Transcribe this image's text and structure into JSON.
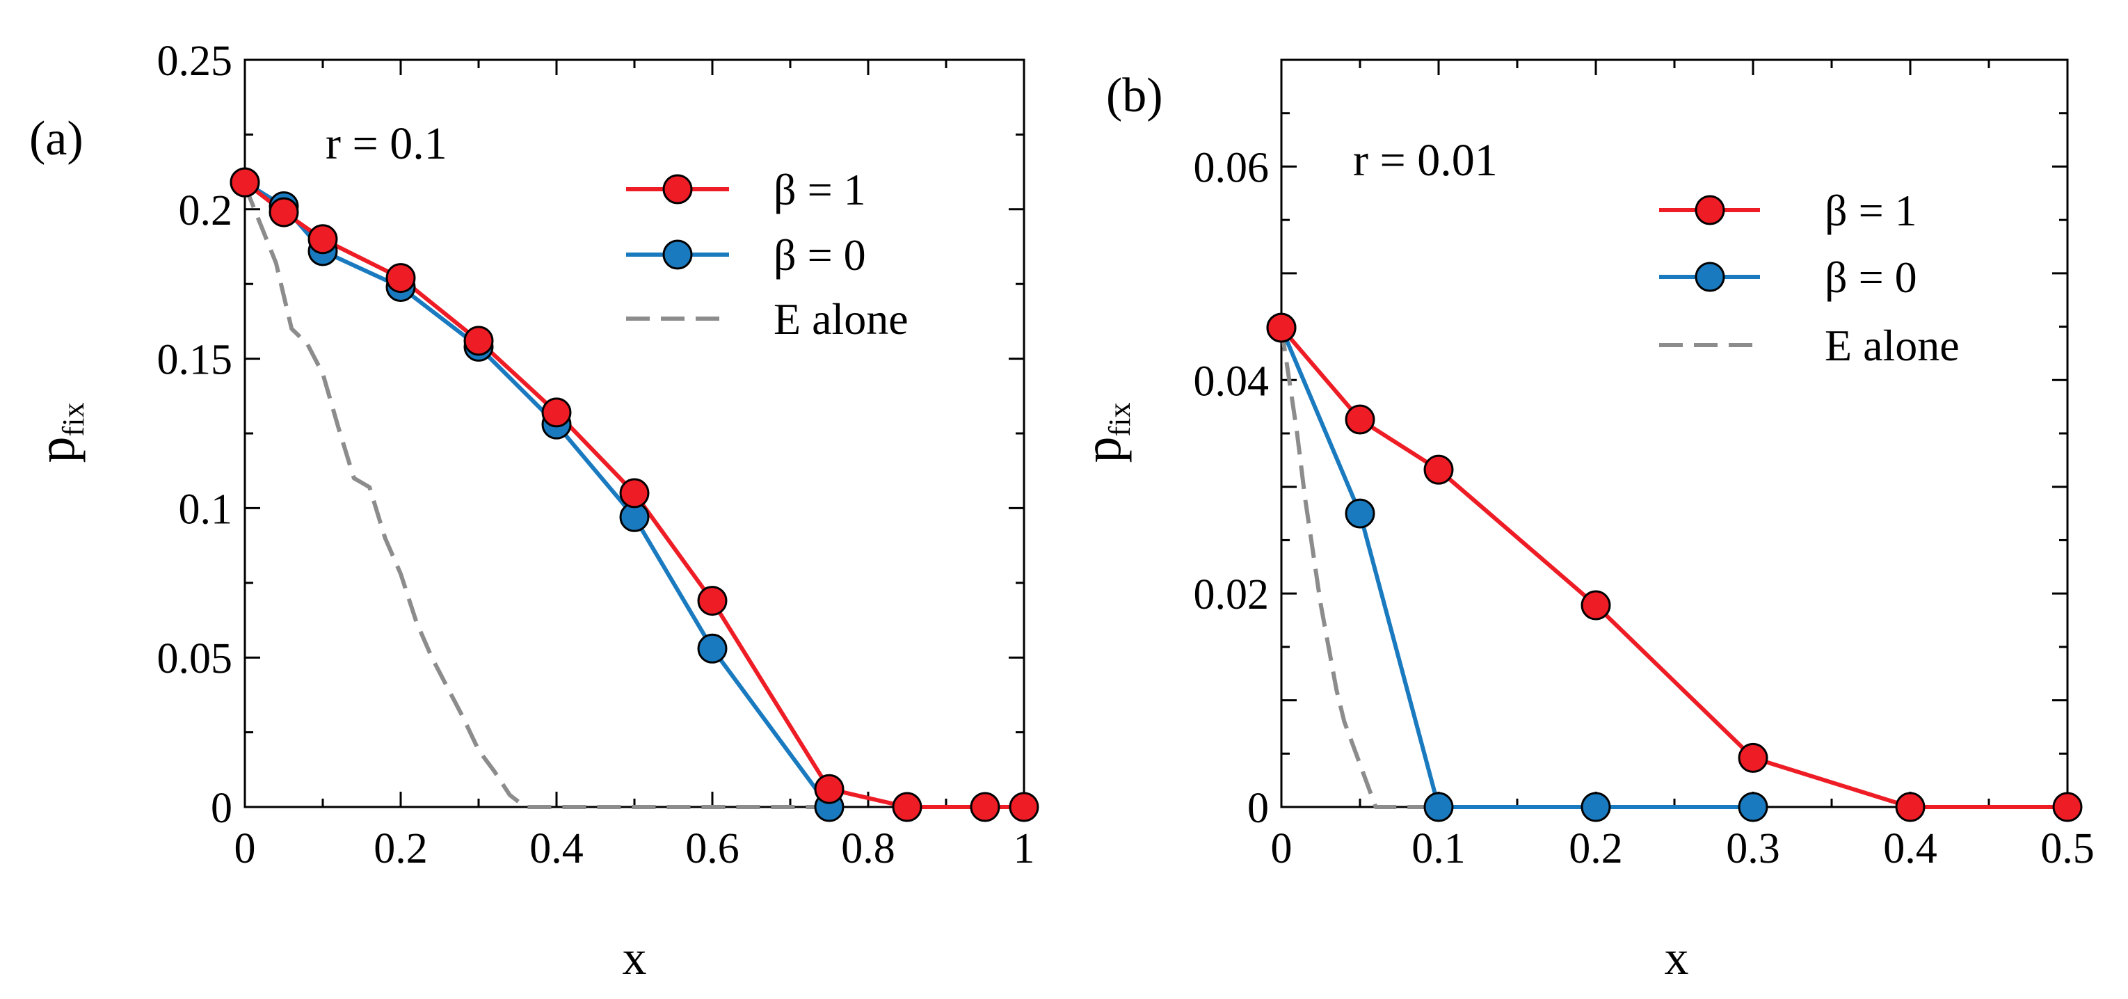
{
  "chart_data": [
    {
      "type": "line",
      "panel_label": "(a)",
      "annotation": "r = 0.1",
      "xlabel": "x",
      "ylabel": "p",
      "ylabel_sub": "fix",
      "xlim": [
        0,
        1
      ],
      "ylim": [
        0,
        0.25
      ],
      "x_ticks": [
        0,
        0.2,
        0.4,
        0.6,
        0.8,
        1
      ],
      "x_tick_labels": [
        "0",
        "0.2",
        "0.4",
        "0.6",
        "0.8",
        "1"
      ],
      "y_ticks": [
        0,
        0.05,
        0.1,
        0.15,
        0.2,
        0.25
      ],
      "y_tick_labels": [
        "0",
        "0.05",
        "0.1",
        "0.15",
        "0.2",
        "0.25"
      ],
      "legend_position": "top-right",
      "series": [
        {
          "name": "β = 1",
          "color": "#ee1c25",
          "style": "solid-markers",
          "x": [
            0,
            0.05,
            0.1,
            0.2,
            0.3,
            0.4,
            0.5,
            0.6,
            0.75,
            0.85,
            0.95,
            1.0
          ],
          "y": [
            0.209,
            0.199,
            0.19,
            0.177,
            0.156,
            0.132,
            0.105,
            0.069,
            0.006,
            0.0,
            0.0,
            0.0
          ]
        },
        {
          "name": "β = 0",
          "color": "#1a7abf",
          "style": "solid-markers",
          "x": [
            0,
            0.05,
            0.1,
            0.2,
            0.3,
            0.4,
            0.5,
            0.6,
            0.75
          ],
          "y": [
            0.209,
            0.201,
            0.186,
            0.174,
            0.154,
            0.128,
            0.097,
            0.053,
            0.0
          ]
        },
        {
          "name": "E alone",
          "color": "#8c8c8c",
          "style": "dashed",
          "x": [
            0,
            0.02,
            0.04,
            0.06,
            0.08,
            0.1,
            0.12,
            0.14,
            0.16,
            0.18,
            0.2,
            0.22,
            0.24,
            0.26,
            0.28,
            0.3,
            0.32,
            0.34,
            0.36,
            0.4,
            0.5,
            0.6,
            0.7,
            0.75
          ],
          "y": [
            0.208,
            0.195,
            0.182,
            0.16,
            0.155,
            0.145,
            0.127,
            0.11,
            0.107,
            0.09,
            0.078,
            0.062,
            0.05,
            0.04,
            0.03,
            0.019,
            0.012,
            0.004,
            0.0,
            0.0,
            0.0,
            0.0,
            0.0,
            0.0
          ]
        }
      ]
    },
    {
      "type": "line",
      "panel_label": "(b)",
      "annotation": "r = 0.01",
      "xlabel": "x",
      "ylabel": "p",
      "ylabel_sub": "fix",
      "xlim": [
        0,
        0.5
      ],
      "ylim": [
        0,
        0.07
      ],
      "x_ticks": [
        0,
        0.1,
        0.2,
        0.3,
        0.4,
        0.5
      ],
      "x_tick_labels": [
        "0",
        "0.1",
        "0.2",
        "0.3",
        "0.4",
        "0.5"
      ],
      "y_ticks": [
        0,
        0.02,
        0.04,
        0.06
      ],
      "y_tick_labels": [
        "0",
        "0.02",
        "0.04",
        "0.06"
      ],
      "legend_position": "top-right",
      "series": [
        {
          "name": "β = 1",
          "color": "#ee1c25",
          "style": "solid-markers",
          "x": [
            0,
            0.05,
            0.1,
            0.2,
            0.3,
            0.4,
            0.5
          ],
          "y": [
            0.0449,
            0.0363,
            0.0316,
            0.0189,
            0.0046,
            0.0,
            0.0
          ]
        },
        {
          "name": "β = 0",
          "color": "#1a7abf",
          "style": "solid-markers",
          "x": [
            0,
            0.05,
            0.1,
            0.2,
            0.3
          ],
          "y": [
            0.0449,
            0.0275,
            0.0,
            0.0,
            0.0
          ]
        },
        {
          "name": "E alone",
          "color": "#8c8c8c",
          "style": "dashed",
          "x": [
            0,
            0.005,
            0.01,
            0.015,
            0.02,
            0.025,
            0.03,
            0.035,
            0.04,
            0.045,
            0.05,
            0.055,
            0.06,
            0.1,
            0.2,
            0.3
          ],
          "y": [
            0.0449,
            0.04,
            0.035,
            0.029,
            0.024,
            0.019,
            0.015,
            0.011,
            0.008,
            0.006,
            0.004,
            0.002,
            0.0,
            0.0,
            0.0,
            0.0
          ]
        }
      ]
    }
  ]
}
